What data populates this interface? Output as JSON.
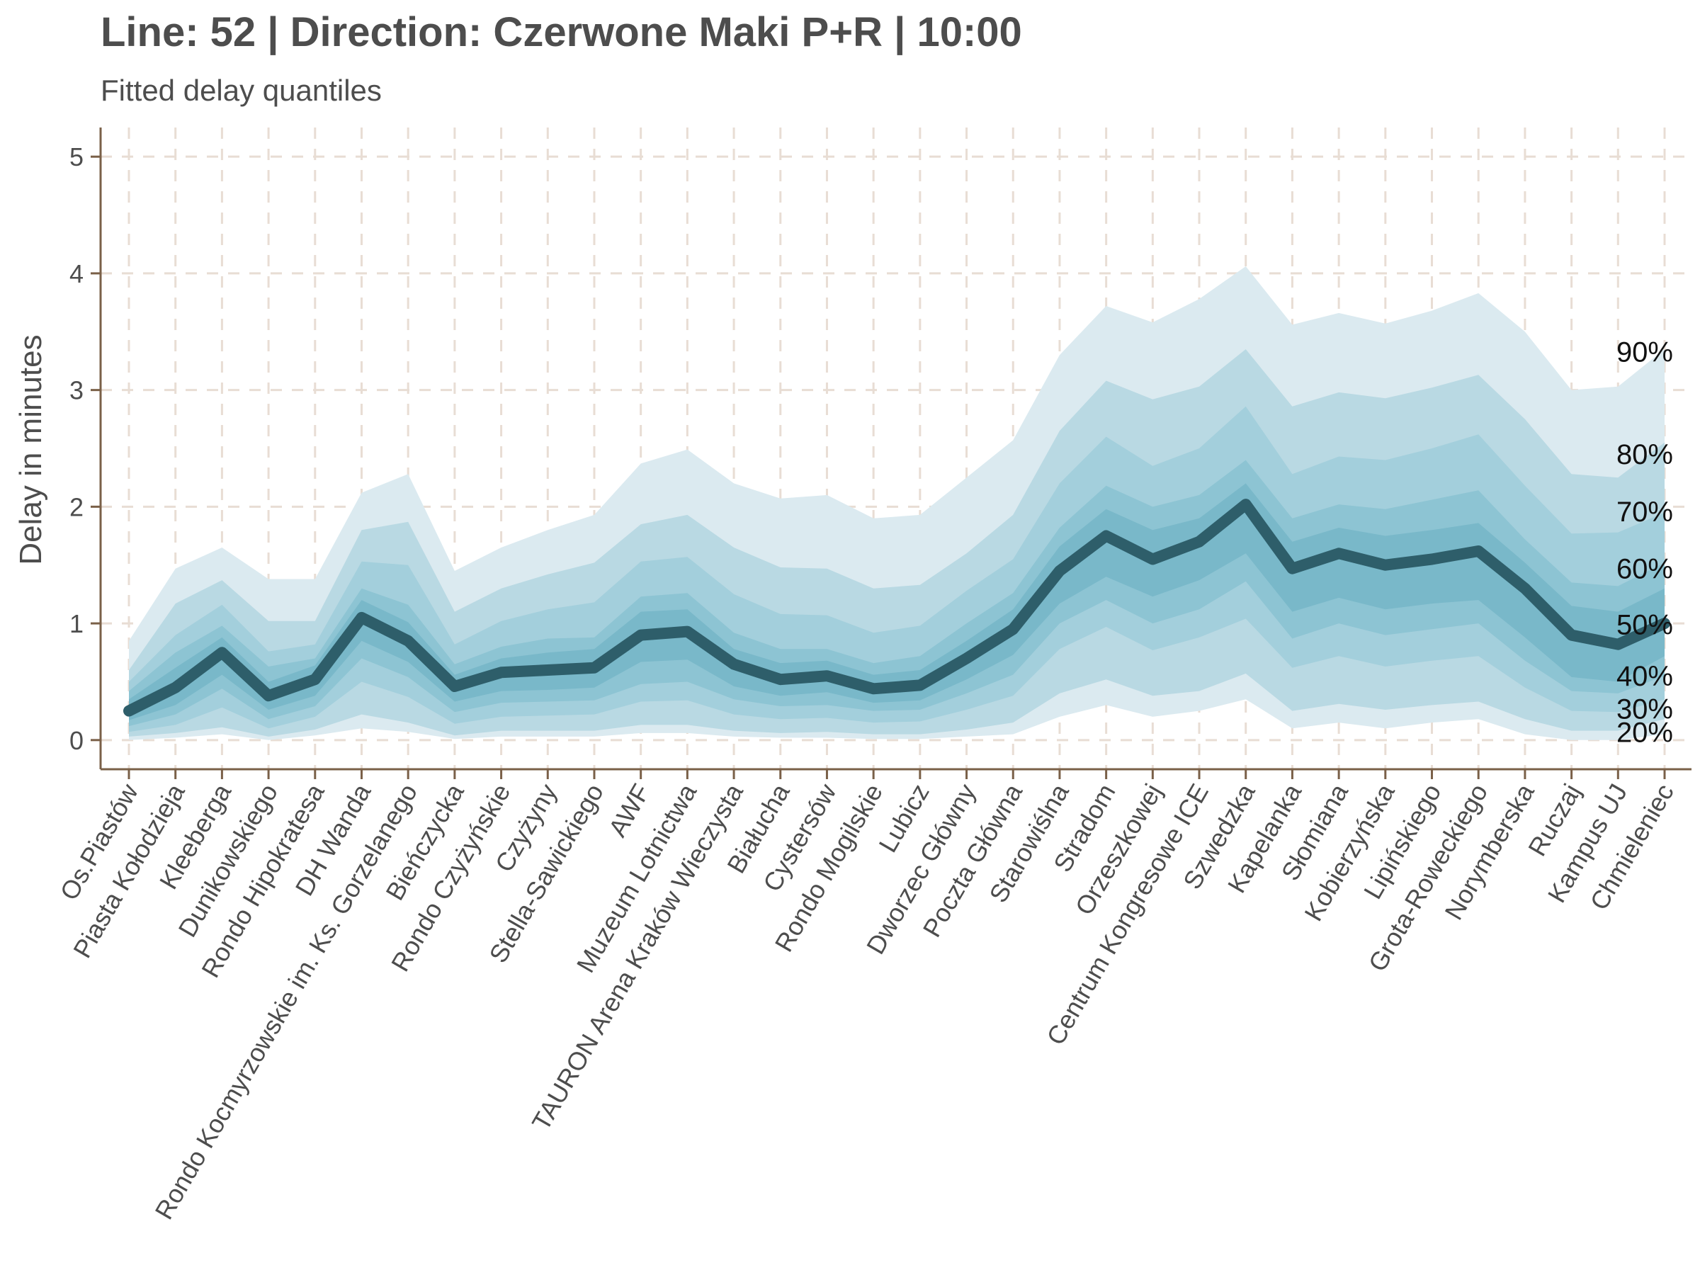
{
  "chart_data": {
    "type": "area",
    "title": "Line: 52 | Direction: Czerwone Maki P+R | 10:00",
    "subtitle": "Fitted delay quantiles",
    "xlabel": "",
    "ylabel": "Delay in minutes",
    "ylim": [
      -0.25,
      5.25
    ],
    "yticks": [
      0,
      1,
      2,
      3,
      4,
      5
    ],
    "grid": true,
    "categories": [
      "Os.Piastów",
      "Piasta Kołodzieja",
      "Kleeberga",
      "Dunikowskiego",
      "Rondo Hipokratesa",
      "DH Wanda",
      "Rondo Kocmyrzowskie im. Ks. Gorzelanego",
      "Bieńczycka",
      "Rondo Czyżyńskie",
      "Czyżyny",
      "Stella-Sawickiego",
      "AWF",
      "Muzeum Lotnictwa",
      "TAURON Arena Kraków Wieczysta",
      "Białucha",
      "Cystersów",
      "Rondo Mogilskie",
      "Lubicz",
      "Dworzec Główny",
      "Poczta Główna",
      "Starowiślna",
      "Stradom",
      "Orzeszkowej",
      "Centrum Kongresowe ICE",
      "Szwedzka",
      "Kapelanka",
      "Słomiana",
      "Kobierzyńska",
      "Lipińskiego",
      "Grota-Roweckiego",
      "Norymberska",
      "Ruczaj",
      "Kampus UJ",
      "Chmieleniec"
    ],
    "median": [
      0.25,
      0.45,
      0.75,
      0.38,
      0.52,
      1.05,
      0.85,
      0.46,
      0.58,
      0.6,
      0.62,
      0.9,
      0.93,
      0.65,
      0.52,
      0.55,
      0.44,
      0.47,
      0.7,
      0.95,
      1.45,
      1.75,
      1.55,
      1.7,
      2.02,
      1.47,
      1.6,
      1.5,
      1.55,
      1.62,
      1.3,
      0.9,
      0.82,
      1.0
    ],
    "series": [
      {
        "name": "90%",
        "lower": [
          0.0,
          0.02,
          0.05,
          0.0,
          0.04,
          0.1,
          0.07,
          0.01,
          0.03,
          0.03,
          0.03,
          0.06,
          0.06,
          0.03,
          0.02,
          0.02,
          0.01,
          0.01,
          0.03,
          0.05,
          0.2,
          0.3,
          0.2,
          0.25,
          0.35,
          0.1,
          0.15,
          0.1,
          0.15,
          0.18,
          0.05,
          0.0,
          0.0,
          0.05
        ],
        "upper": [
          0.85,
          1.47,
          1.65,
          1.38,
          1.38,
          2.12,
          2.28,
          1.45,
          1.65,
          1.8,
          1.93,
          2.37,
          2.49,
          2.2,
          2.07,
          2.1,
          1.9,
          1.93,
          2.25,
          2.57,
          3.3,
          3.72,
          3.58,
          3.78,
          4.06,
          3.56,
          3.66,
          3.57,
          3.68,
          3.83,
          3.5,
          3.0,
          3.03,
          3.35
        ]
      },
      {
        "name": "80%",
        "lower": [
          0.03,
          0.06,
          0.11,
          0.03,
          0.09,
          0.22,
          0.15,
          0.04,
          0.08,
          0.08,
          0.08,
          0.13,
          0.13,
          0.08,
          0.06,
          0.07,
          0.05,
          0.05,
          0.09,
          0.15,
          0.4,
          0.52,
          0.38,
          0.42,
          0.57,
          0.25,
          0.31,
          0.26,
          0.3,
          0.33,
          0.18,
          0.08,
          0.08,
          0.18
        ],
        "upper": [
          0.6,
          1.17,
          1.37,
          1.02,
          1.02,
          1.8,
          1.87,
          1.1,
          1.3,
          1.42,
          1.52,
          1.85,
          1.93,
          1.65,
          1.48,
          1.47,
          1.3,
          1.33,
          1.6,
          1.93,
          2.65,
          3.08,
          2.92,
          3.03,
          3.35,
          2.86,
          2.98,
          2.93,
          3.02,
          3.13,
          2.75,
          2.28,
          2.25,
          2.55
        ]
      },
      {
        "name": "70%",
        "lower": [
          0.07,
          0.13,
          0.28,
          0.1,
          0.2,
          0.5,
          0.37,
          0.14,
          0.2,
          0.21,
          0.22,
          0.33,
          0.34,
          0.22,
          0.18,
          0.19,
          0.15,
          0.16,
          0.26,
          0.38,
          0.78,
          0.97,
          0.77,
          0.88,
          1.04,
          0.62,
          0.72,
          0.63,
          0.68,
          0.72,
          0.45,
          0.25,
          0.24,
          0.35
        ],
        "upper": [
          0.5,
          0.9,
          1.16,
          0.76,
          0.82,
          1.53,
          1.5,
          0.82,
          1.02,
          1.12,
          1.18,
          1.53,
          1.57,
          1.25,
          1.08,
          1.07,
          0.92,
          0.98,
          1.28,
          1.55,
          2.2,
          2.6,
          2.35,
          2.5,
          2.86,
          2.28,
          2.43,
          2.4,
          2.5,
          2.62,
          2.18,
          1.77,
          1.78,
          1.95
        ]
      },
      {
        "name": "60%",
        "lower": [
          0.12,
          0.22,
          0.44,
          0.18,
          0.29,
          0.7,
          0.54,
          0.24,
          0.32,
          0.33,
          0.34,
          0.48,
          0.5,
          0.35,
          0.29,
          0.3,
          0.25,
          0.26,
          0.4,
          0.56,
          1.0,
          1.2,
          1.0,
          1.12,
          1.36,
          0.87,
          1.0,
          0.9,
          0.95,
          1.0,
          0.68,
          0.42,
          0.4,
          0.55
        ],
        "upper": [
          0.42,
          0.75,
          0.98,
          0.63,
          0.7,
          1.3,
          1.16,
          0.65,
          0.8,
          0.87,
          0.88,
          1.23,
          1.26,
          0.92,
          0.78,
          0.78,
          0.66,
          0.72,
          1.0,
          1.26,
          1.82,
          2.18,
          2.0,
          2.1,
          2.4,
          1.9,
          2.02,
          1.98,
          2.06,
          2.14,
          1.72,
          1.35,
          1.32,
          1.52
        ]
      },
      {
        "name": "50%",
        "lower": [
          0.17,
          0.3,
          0.56,
          0.26,
          0.38,
          0.85,
          0.67,
          0.33,
          0.42,
          0.43,
          0.45,
          0.67,
          0.69,
          0.46,
          0.38,
          0.41,
          0.32,
          0.34,
          0.52,
          0.73,
          1.17,
          1.4,
          1.23,
          1.37,
          1.6,
          1.1,
          1.22,
          1.12,
          1.17,
          1.2,
          0.88,
          0.54,
          0.5,
          0.72
        ],
        "upper": [
          0.35,
          0.62,
          0.88,
          0.5,
          0.64,
          1.2,
          1.01,
          0.56,
          0.7,
          0.75,
          0.78,
          1.1,
          1.12,
          0.78,
          0.66,
          0.68,
          0.56,
          0.6,
          0.85,
          1.12,
          1.66,
          1.98,
          1.8,
          1.9,
          2.2,
          1.7,
          1.82,
          1.75,
          1.8,
          1.86,
          1.52,
          1.15,
          1.1,
          1.3
        ]
      }
    ],
    "band_labels": [
      {
        "text": "90%",
        "y": 3.33
      },
      {
        "text": "80%",
        "y": 2.45
      },
      {
        "text": "70%",
        "y": 1.96
      },
      {
        "text": "60%",
        "y": 1.47
      },
      {
        "text": "50%",
        "y": 0.99
      },
      {
        "text": "40%",
        "y": 0.55
      },
      {
        "text": "30%",
        "y": 0.27
      },
      {
        "text": "20%",
        "y": 0.07
      }
    ],
    "colors": {
      "band_90": "#dbeaf0",
      "band_80": "#b9d9e3",
      "band_70": "#a3cfdc",
      "band_60": "#8dc4d3",
      "band_50": "#79b8c9",
      "median_line": "#2e5e6a",
      "grid": "#e8ddd4",
      "axis": "#7a6048",
      "text": "#4d4d4d"
    }
  }
}
